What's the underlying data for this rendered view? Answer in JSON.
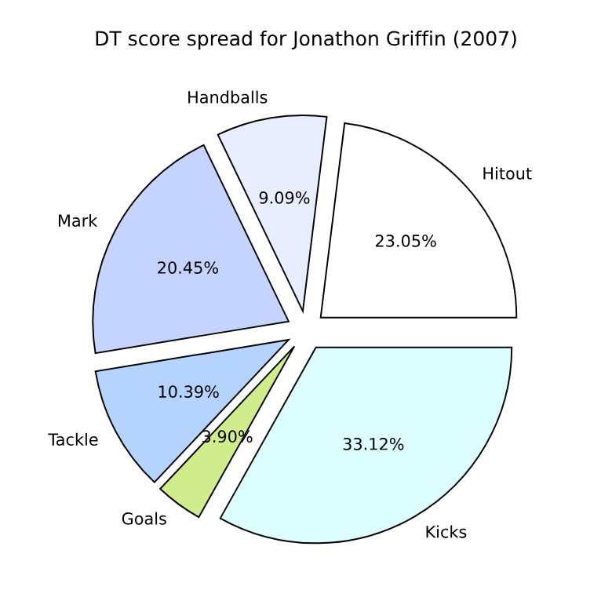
{
  "chart_data": {
    "type": "pie",
    "title": "DT score spread for Jonathon Griffin (2007)",
    "categories": [
      "Hitout",
      "Handballs",
      "Mark",
      "Tackle",
      "Goals",
      "Kicks"
    ],
    "values": [
      23.05,
      9.09,
      20.45,
      10.39,
      3.9,
      33.12
    ],
    "colors": [
      "#ffffff",
      "#e8eeff",
      "#c4d4ff",
      "#b4d4ff",
      "#d0ec8c",
      "#dcfefe"
    ],
    "value_labels": [
      "23.05%",
      "9.09%",
      "20.45%",
      "10.39%",
      "3.90%",
      "33.12%"
    ]
  }
}
